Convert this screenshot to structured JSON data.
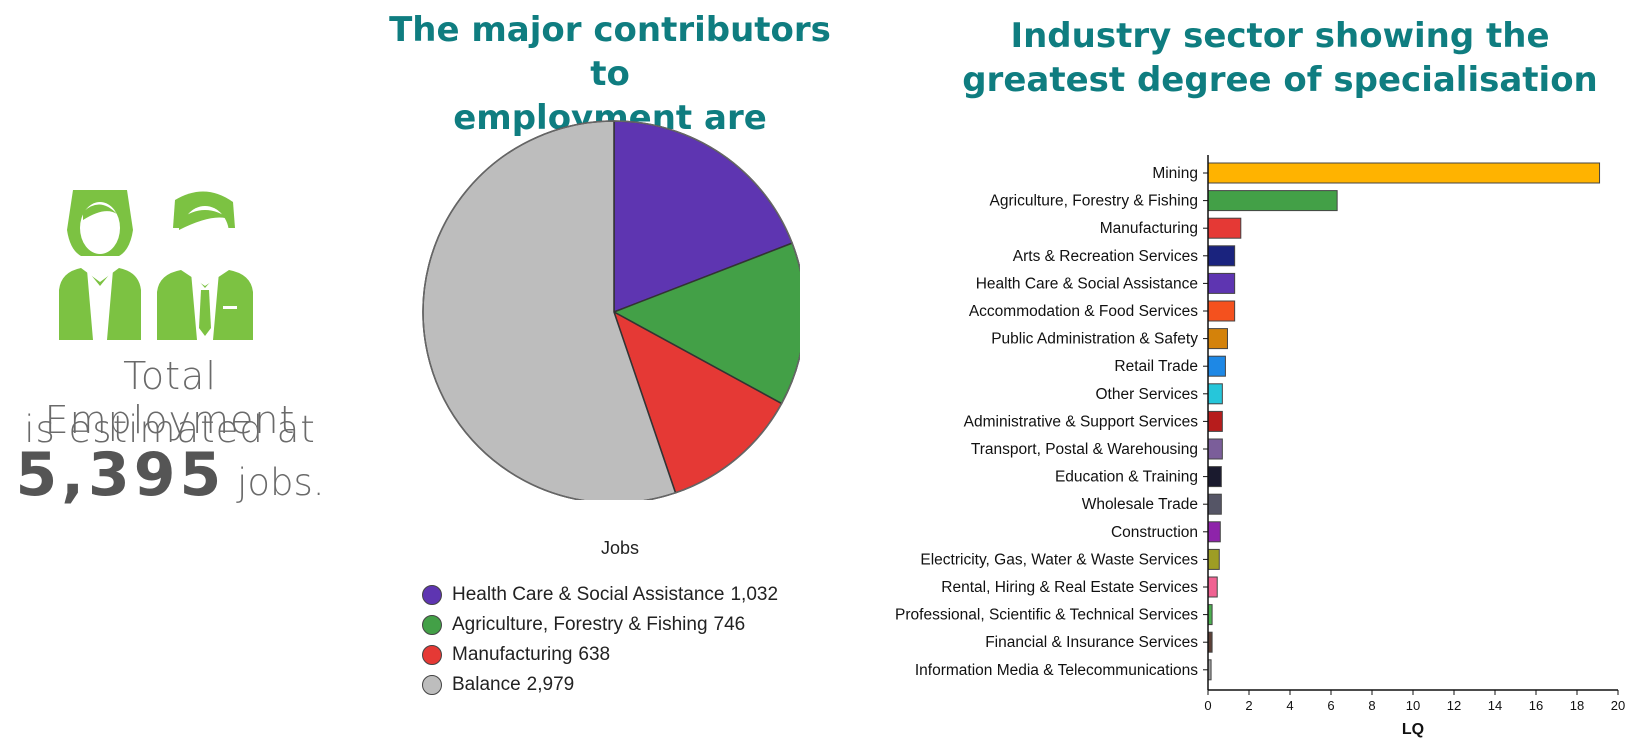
{
  "summary": {
    "line1": "Total Employment",
    "line2": "is estimated at",
    "number": "5,395",
    "unit": "jobs."
  },
  "pie_title": {
    "line1": "The major contributors to",
    "line2": "employment are"
  },
  "bar_title": {
    "line1": "Industry sector showing the",
    "line2": "greatest degree of specialisation"
  },
  "colors": {
    "accent_title": "#0f7d80",
    "people_icon": "#7cc242"
  },
  "chart_data": [
    {
      "type": "pie",
      "xlabel": "Jobs",
      "slices": [
        {
          "name": "Health Care & Social Assistance",
          "value": 1032,
          "label": "1,032",
          "color": "#5e35b1"
        },
        {
          "name": "Agriculture, Forestry & Fishing",
          "value": 746,
          "label": "746",
          "color": "#43a047"
        },
        {
          "name": "Manufacturing",
          "value": 638,
          "label": "638",
          "color": "#e53935"
        },
        {
          "name": "Balance",
          "value": 2979,
          "label": "2,979",
          "color": "#bdbdbd"
        }
      ]
    },
    {
      "type": "bar",
      "orientation": "horizontal",
      "xlabel": "LQ",
      "xlim": [
        0,
        20
      ],
      "xticks": [
        0,
        2,
        4,
        6,
        8,
        10,
        12,
        14,
        16,
        18,
        20
      ],
      "categories": [
        "Mining",
        "Agriculture, Forestry & Fishing",
        "Manufacturing",
        "Arts & Recreation Services",
        "Health Care & Social Assistance",
        "Accommodation & Food Services",
        "Public Administration & Safety",
        "Retail Trade",
        "Other Services",
        "Administrative & Support Services",
        "Transport, Postal & Warehousing",
        "Education & Training",
        "Wholesale Trade",
        "Construction",
        "Electricity, Gas, Water & Waste Services",
        "Rental, Hiring & Real Estate Services",
        "Professional, Scientific & Technical Services",
        "Financial & Insurance Services",
        "Information Media & Telecommunications"
      ],
      "values": [
        19.1,
        6.3,
        1.6,
        1.3,
        1.3,
        1.3,
        0.95,
        0.85,
        0.7,
        0.7,
        0.7,
        0.65,
        0.65,
        0.6,
        0.55,
        0.45,
        0.2,
        0.2,
        0.15
      ],
      "colors": [
        "#ffb300",
        "#43a047",
        "#e53935",
        "#1a237e",
        "#5e35b1",
        "#f4511e",
        "#d4820a",
        "#1e88e5",
        "#26c6da",
        "#b71c1c",
        "#7b5e9a",
        "#1a1a2e",
        "#555566",
        "#8e24aa",
        "#9e9d24",
        "#f06292",
        "#4caf50",
        "#5d4037",
        "#9e9e9e"
      ]
    }
  ]
}
